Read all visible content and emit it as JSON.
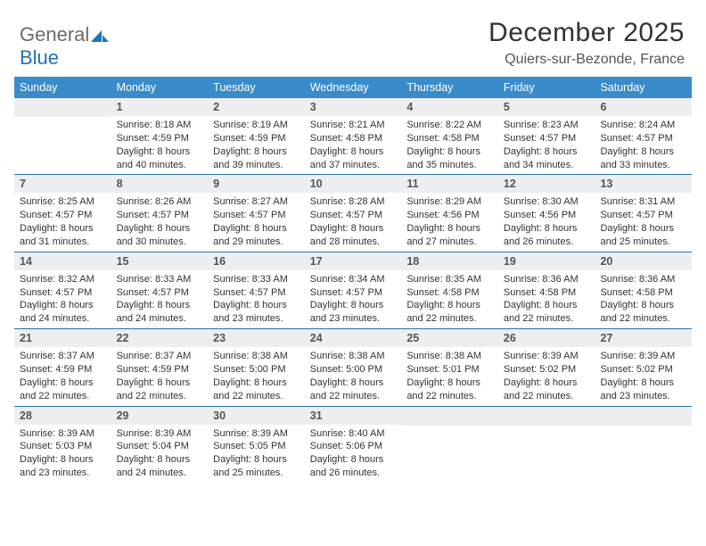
{
  "logo": {
    "general": "General",
    "blue": "Blue"
  },
  "title": "December 2025",
  "location": "Quiers-sur-Bezonde, France",
  "colors": {
    "header_bar": "#3a8bc9",
    "week_divider": "#2f6fa8",
    "daynum_bg": "#eceef0",
    "text": "#333333",
    "logo_gray": "#6b6b6b",
    "logo_blue": "#1f73b7"
  },
  "weekdays": [
    "Sunday",
    "Monday",
    "Tuesday",
    "Wednesday",
    "Thursday",
    "Friday",
    "Saturday"
  ],
  "weeks": [
    [
      {
        "n": "",
        "sr": "",
        "ss": "",
        "dl": ""
      },
      {
        "n": "1",
        "sr": "Sunrise: 8:18 AM",
        "ss": "Sunset: 4:59 PM",
        "dl": "Daylight: 8 hours and 40 minutes."
      },
      {
        "n": "2",
        "sr": "Sunrise: 8:19 AM",
        "ss": "Sunset: 4:59 PM",
        "dl": "Daylight: 8 hours and 39 minutes."
      },
      {
        "n": "3",
        "sr": "Sunrise: 8:21 AM",
        "ss": "Sunset: 4:58 PM",
        "dl": "Daylight: 8 hours and 37 minutes."
      },
      {
        "n": "4",
        "sr": "Sunrise: 8:22 AM",
        "ss": "Sunset: 4:58 PM",
        "dl": "Daylight: 8 hours and 35 minutes."
      },
      {
        "n": "5",
        "sr": "Sunrise: 8:23 AM",
        "ss": "Sunset: 4:57 PM",
        "dl": "Daylight: 8 hours and 34 minutes."
      },
      {
        "n": "6",
        "sr": "Sunrise: 8:24 AM",
        "ss": "Sunset: 4:57 PM",
        "dl": "Daylight: 8 hours and 33 minutes."
      }
    ],
    [
      {
        "n": "7",
        "sr": "Sunrise: 8:25 AM",
        "ss": "Sunset: 4:57 PM",
        "dl": "Daylight: 8 hours and 31 minutes."
      },
      {
        "n": "8",
        "sr": "Sunrise: 8:26 AM",
        "ss": "Sunset: 4:57 PM",
        "dl": "Daylight: 8 hours and 30 minutes."
      },
      {
        "n": "9",
        "sr": "Sunrise: 8:27 AM",
        "ss": "Sunset: 4:57 PM",
        "dl": "Daylight: 8 hours and 29 minutes."
      },
      {
        "n": "10",
        "sr": "Sunrise: 8:28 AM",
        "ss": "Sunset: 4:57 PM",
        "dl": "Daylight: 8 hours and 28 minutes."
      },
      {
        "n": "11",
        "sr": "Sunrise: 8:29 AM",
        "ss": "Sunset: 4:56 PM",
        "dl": "Daylight: 8 hours and 27 minutes."
      },
      {
        "n": "12",
        "sr": "Sunrise: 8:30 AM",
        "ss": "Sunset: 4:56 PM",
        "dl": "Daylight: 8 hours and 26 minutes."
      },
      {
        "n": "13",
        "sr": "Sunrise: 8:31 AM",
        "ss": "Sunset: 4:57 PM",
        "dl": "Daylight: 8 hours and 25 minutes."
      }
    ],
    [
      {
        "n": "14",
        "sr": "Sunrise: 8:32 AM",
        "ss": "Sunset: 4:57 PM",
        "dl": "Daylight: 8 hours and 24 minutes."
      },
      {
        "n": "15",
        "sr": "Sunrise: 8:33 AM",
        "ss": "Sunset: 4:57 PM",
        "dl": "Daylight: 8 hours and 24 minutes."
      },
      {
        "n": "16",
        "sr": "Sunrise: 8:33 AM",
        "ss": "Sunset: 4:57 PM",
        "dl": "Daylight: 8 hours and 23 minutes."
      },
      {
        "n": "17",
        "sr": "Sunrise: 8:34 AM",
        "ss": "Sunset: 4:57 PM",
        "dl": "Daylight: 8 hours and 23 minutes."
      },
      {
        "n": "18",
        "sr": "Sunrise: 8:35 AM",
        "ss": "Sunset: 4:58 PM",
        "dl": "Daylight: 8 hours and 22 minutes."
      },
      {
        "n": "19",
        "sr": "Sunrise: 8:36 AM",
        "ss": "Sunset: 4:58 PM",
        "dl": "Daylight: 8 hours and 22 minutes."
      },
      {
        "n": "20",
        "sr": "Sunrise: 8:36 AM",
        "ss": "Sunset: 4:58 PM",
        "dl": "Daylight: 8 hours and 22 minutes."
      }
    ],
    [
      {
        "n": "21",
        "sr": "Sunrise: 8:37 AM",
        "ss": "Sunset: 4:59 PM",
        "dl": "Daylight: 8 hours and 22 minutes."
      },
      {
        "n": "22",
        "sr": "Sunrise: 8:37 AM",
        "ss": "Sunset: 4:59 PM",
        "dl": "Daylight: 8 hours and 22 minutes."
      },
      {
        "n": "23",
        "sr": "Sunrise: 8:38 AM",
        "ss": "Sunset: 5:00 PM",
        "dl": "Daylight: 8 hours and 22 minutes."
      },
      {
        "n": "24",
        "sr": "Sunrise: 8:38 AM",
        "ss": "Sunset: 5:00 PM",
        "dl": "Daylight: 8 hours and 22 minutes."
      },
      {
        "n": "25",
        "sr": "Sunrise: 8:38 AM",
        "ss": "Sunset: 5:01 PM",
        "dl": "Daylight: 8 hours and 22 minutes."
      },
      {
        "n": "26",
        "sr": "Sunrise: 8:39 AM",
        "ss": "Sunset: 5:02 PM",
        "dl": "Daylight: 8 hours and 22 minutes."
      },
      {
        "n": "27",
        "sr": "Sunrise: 8:39 AM",
        "ss": "Sunset: 5:02 PM",
        "dl": "Daylight: 8 hours and 23 minutes."
      }
    ],
    [
      {
        "n": "28",
        "sr": "Sunrise: 8:39 AM",
        "ss": "Sunset: 5:03 PM",
        "dl": "Daylight: 8 hours and 23 minutes."
      },
      {
        "n": "29",
        "sr": "Sunrise: 8:39 AM",
        "ss": "Sunset: 5:04 PM",
        "dl": "Daylight: 8 hours and 24 minutes."
      },
      {
        "n": "30",
        "sr": "Sunrise: 8:39 AM",
        "ss": "Sunset: 5:05 PM",
        "dl": "Daylight: 8 hours and 25 minutes."
      },
      {
        "n": "31",
        "sr": "Sunrise: 8:40 AM",
        "ss": "Sunset: 5:06 PM",
        "dl": "Daylight: 8 hours and 26 minutes."
      },
      {
        "n": "",
        "sr": "",
        "ss": "",
        "dl": ""
      },
      {
        "n": "",
        "sr": "",
        "ss": "",
        "dl": ""
      },
      {
        "n": "",
        "sr": "",
        "ss": "",
        "dl": ""
      }
    ]
  ]
}
